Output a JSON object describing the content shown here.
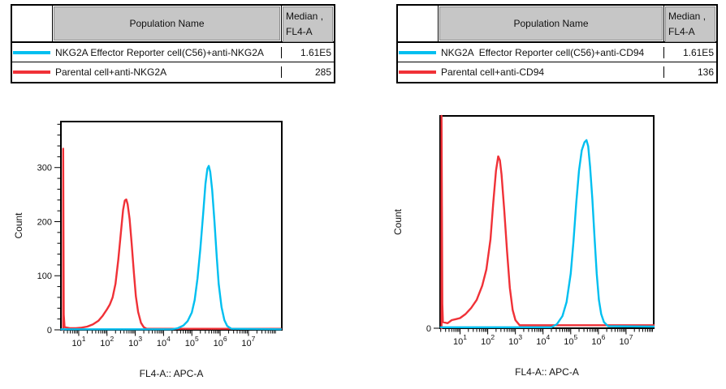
{
  "colors": {
    "cyan": "#00bff0",
    "red": "#f03137",
    "table_header_bg": "#c6c6c6"
  },
  "panels": [
    {
      "table": {
        "header": {
          "population": "Population Name",
          "median_line1": "Median ,",
          "median_line2": "FL4-A"
        },
        "rows": [
          {
            "color": "#00bff0",
            "name": "NKG2A Effector Reporter cell(C56)+anti-NKG2A",
            "median": "1.61E5"
          },
          {
            "color": "#f03137",
            "name": "Parental cell+anti-NKG2A",
            "median": "285"
          }
        ]
      }
    },
    {
      "table": {
        "header": {
          "population": "Population Name",
          "median_line1": "Median ,",
          "median_line2": "FL4-A"
        },
        "rows": [
          {
            "color": "#00bff0",
            "name": "NKG2A  Effector Reporter cell(C56)+anti-CD94",
            "median": "1.61E5"
          },
          {
            "color": "#f03137",
            "name": "Parental cell+anti-CD94",
            "median": "136"
          }
        ]
      }
    }
  ],
  "chart_data": [
    {
      "type": "line",
      "subtype": "flow-cytometry-histogram-overlay",
      "title": "",
      "xlabel": "FL4-A:: APC-A",
      "ylabel": "Count",
      "x_scale": "log10",
      "x_tick_base": "10",
      "x_major_tick_exponents": [
        1,
        2,
        3,
        4,
        5,
        6,
        7
      ],
      "x_range_log10": [
        0.37,
        8.18
      ],
      "y_range": [
        0,
        385
      ],
      "y_major_ticks": [
        0,
        100,
        200,
        300
      ],
      "y_minor_step": 20,
      "grid": false,
      "legend": "table-above",
      "series": [
        {
          "name": "Parental cell+anti-NKG2A",
          "color": "#f03137",
          "median": "285",
          "points": [
            [
              0.45,
              0
            ],
            [
              0.45,
              335
            ],
            [
              0.47,
              28
            ],
            [
              0.5,
              5
            ],
            [
              0.7,
              3
            ],
            [
              0.9,
              3
            ],
            [
              1.1,
              4
            ],
            [
              1.3,
              6
            ],
            [
              1.5,
              10
            ],
            [
              1.7,
              17
            ],
            [
              1.85,
              26
            ],
            [
              2.0,
              38
            ],
            [
              2.1,
              47
            ],
            [
              2.2,
              60
            ],
            [
              2.3,
              85
            ],
            [
              2.4,
              130
            ],
            [
              2.5,
              185
            ],
            [
              2.57,
              222
            ],
            [
              2.63,
              239
            ],
            [
              2.68,
              241
            ],
            [
              2.73,
              232
            ],
            [
              2.8,
              205
            ],
            [
              2.87,
              160
            ],
            [
              2.95,
              105
            ],
            [
              3.02,
              62
            ],
            [
              3.1,
              33
            ],
            [
              3.2,
              13
            ],
            [
              3.3,
              5
            ],
            [
              3.4,
              2
            ],
            [
              8.15,
              2
            ]
          ]
        },
        {
          "name": "NKG2A Effector Reporter cell(C56)+anti-NKG2A",
          "color": "#00bff0",
          "median": "1.61E5",
          "points": [
            [
              0.38,
              1
            ],
            [
              4.3,
              1
            ],
            [
              4.5,
              3
            ],
            [
              4.7,
              8
            ],
            [
              4.85,
              16
            ],
            [
              5.0,
              32
            ],
            [
              5.1,
              55
            ],
            [
              5.2,
              95
            ],
            [
              5.3,
              150
            ],
            [
              5.4,
              215
            ],
            [
              5.48,
              270
            ],
            [
              5.55,
              298
            ],
            [
              5.6,
              303
            ],
            [
              5.65,
              292
            ],
            [
              5.72,
              258
            ],
            [
              5.8,
              200
            ],
            [
              5.88,
              135
            ],
            [
              5.95,
              85
            ],
            [
              6.05,
              42
            ],
            [
              6.15,
              18
            ],
            [
              6.25,
              7
            ],
            [
              6.4,
              2
            ],
            [
              8.15,
              1
            ]
          ]
        }
      ]
    },
    {
      "type": "line",
      "subtype": "flow-cytometry-histogram-overlay",
      "title": "",
      "xlabel": "FL4-A:: APC-A",
      "ylabel": "Count",
      "x_scale": "log10",
      "x_tick_base": "10",
      "x_major_tick_exponents": [
        1,
        2,
        3,
        4,
        5,
        6,
        7
      ],
      "x_range_log10": [
        0.28,
        8.0
      ],
      "y_range": [
        0,
        105
      ],
      "y_major_ticks": [
        0
      ],
      "y_minor_step": null,
      "grid": false,
      "legend": "table-above",
      "series": [
        {
          "name": "Parental cell+anti-CD94",
          "color": "#f03137",
          "median": "136",
          "points": [
            [
              0.33,
              0
            ],
            [
              0.33,
              105
            ],
            [
              0.36,
              12
            ],
            [
              0.38,
              3
            ],
            [
              0.55,
              2.5
            ],
            [
              0.7,
              4
            ],
            [
              0.85,
              4.5
            ],
            [
              1.0,
              5
            ],
            [
              1.2,
              7
            ],
            [
              1.4,
              10
            ],
            [
              1.6,
              14
            ],
            [
              1.8,
              21
            ],
            [
              1.95,
              29
            ],
            [
              2.1,
              44
            ],
            [
              2.2,
              62
            ],
            [
              2.3,
              78
            ],
            [
              2.38,
              85
            ],
            [
              2.44,
              83
            ],
            [
              2.5,
              76
            ],
            [
              2.6,
              58
            ],
            [
              2.7,
              38
            ],
            [
              2.8,
              20
            ],
            [
              2.9,
              9
            ],
            [
              3.0,
              4
            ],
            [
              3.15,
              1.5
            ],
            [
              8.0,
              1.5
            ]
          ]
        },
        {
          "name": "NKG2A  Effector Reporter cell(C56)+anti-CD94",
          "color": "#00bff0",
          "median": "1.61E5",
          "points": [
            [
              0.3,
              0.5
            ],
            [
              4.3,
              0.5
            ],
            [
              4.5,
              2
            ],
            [
              4.7,
              6
            ],
            [
              4.85,
              13
            ],
            [
              5.0,
              27
            ],
            [
              5.1,
              43
            ],
            [
              5.2,
              62
            ],
            [
              5.3,
              78
            ],
            [
              5.4,
              88
            ],
            [
              5.5,
              92
            ],
            [
              5.57,
              93
            ],
            [
              5.63,
              90
            ],
            [
              5.7,
              80
            ],
            [
              5.78,
              64
            ],
            [
              5.86,
              45
            ],
            [
              5.94,
              27
            ],
            [
              6.02,
              14
            ],
            [
              6.1,
              7
            ],
            [
              6.2,
              3
            ],
            [
              6.35,
              1
            ],
            [
              8.0,
              0.8
            ]
          ]
        }
      ]
    }
  ]
}
